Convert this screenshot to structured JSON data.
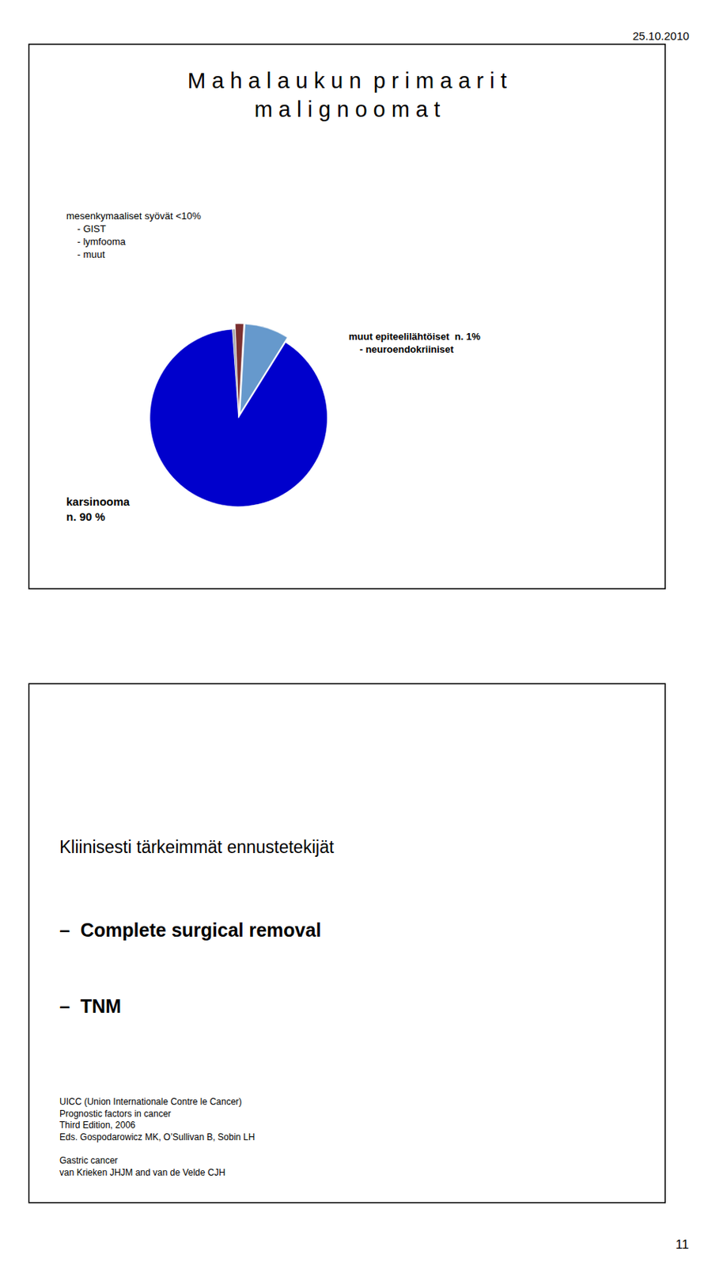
{
  "chart_data": {
    "type": "pie",
    "title": "M a h a l a u k u n  p r i m a a r i t\nm a l i g n o o m a t",
    "values": [
      90,
      8,
      1.5,
      0.5
    ],
    "colors": [
      "#0000cc",
      "#6699cc",
      "#7B3030",
      "#aaaaaa"
    ],
    "annotations": [
      "25.10.2010",
      "11",
      "mesenkymaaliset syövät <10%\n    - GIST\n    - lymfooma\n    - muut",
      "muut epiteelilähtöiset  n. 1%\n    - neuroendokriiniset",
      "karsinooma\nn. 90 %",
      "Kliinisesti tärkeimmät ennustetekijät",
      "–  Complete surgical removal",
      "–  TNM",
      "UICC (Union Internationale Contre le Cancer)\nPrognostic factors in cancer\nThird Edition, 2006\nEds. Gospodarowicz MK, O’Sullivan B, Sobin LH\n\nGastric cancer\nvan Krieken JHJM and van de Velde CJH"
    ]
  }
}
